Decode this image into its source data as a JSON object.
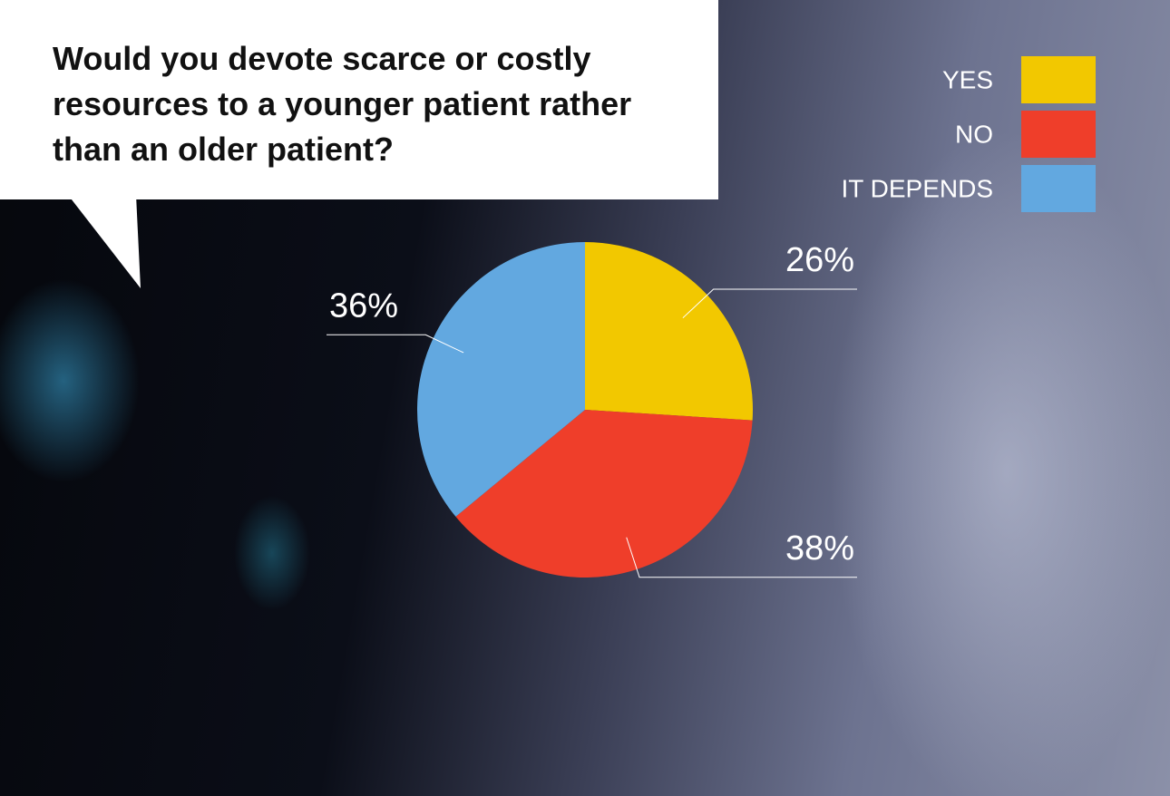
{
  "chart_data": {
    "type": "pie",
    "title": "Would you devote scarce or costly resources to a younger patient rather than an older patient?",
    "categories": [
      "YES",
      "NO",
      "IT DEPENDS"
    ],
    "values": [
      26,
      38,
      36
    ],
    "value_labels": [
      "26%",
      "38%",
      "36%"
    ],
    "colors": [
      "#f2c800",
      "#ef3e2a",
      "#62a8e0"
    ],
    "legend": "upper right"
  }
}
